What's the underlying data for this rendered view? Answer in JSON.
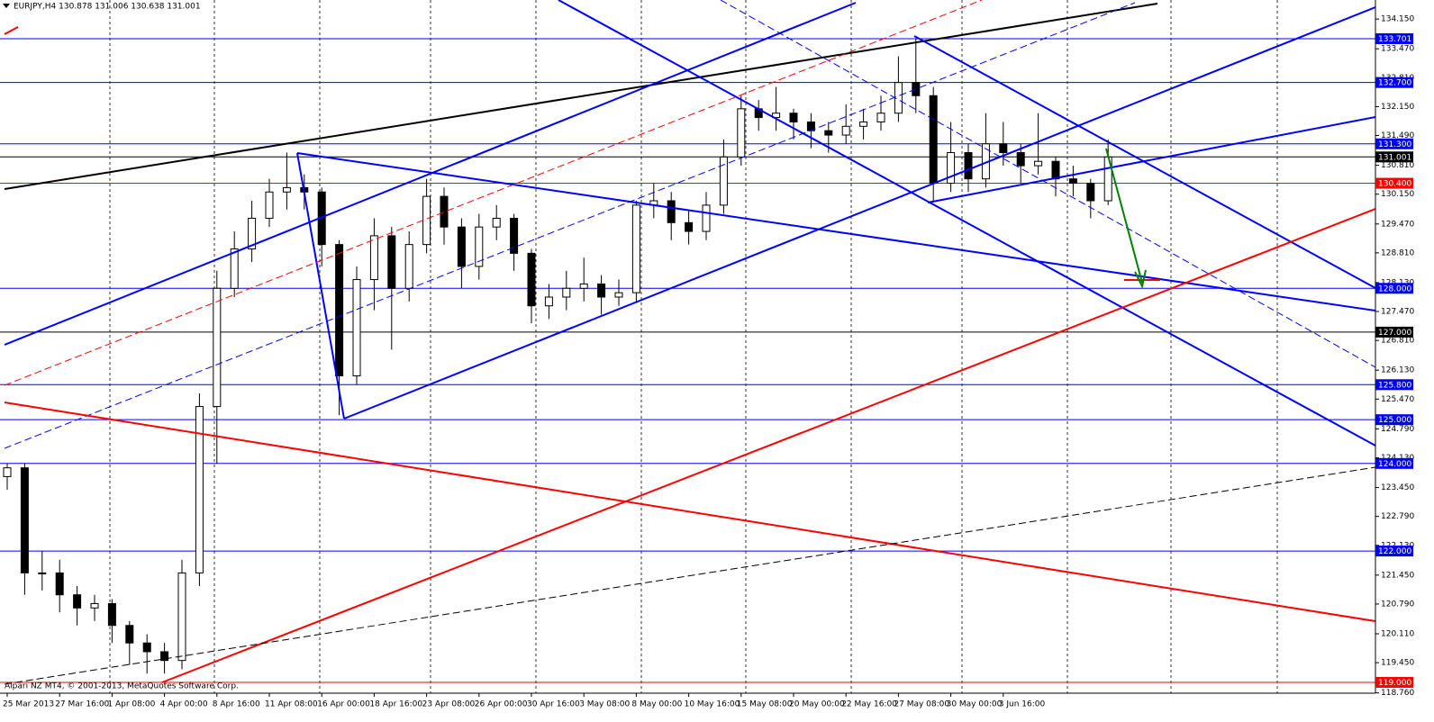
{
  "chart_data": {
    "type": "candlestick",
    "title": "EURJPY,H4  130.878 131.006 130.638 131.001",
    "annotation": "Alpari NZ MT4, © 2001-2013, MetaQuotes Software Corp.",
    "categories": [
      "25 Mar 2013",
      null,
      null,
      "27 Mar 16:00",
      null,
      null,
      "1 Apr 08:00",
      null,
      null,
      "4 Apr 00:00",
      null,
      null,
      "8 Apr 16:00",
      null,
      null,
      "11 Apr 08:00",
      null,
      null,
      "16 Apr 00:00",
      null,
      null,
      "18 Apr 16:00",
      null,
      null,
      "23 Apr 08:00",
      null,
      null,
      "26 Apr 00:00",
      null,
      null,
      "30 Apr 16:00",
      null,
      null,
      "3 May 08:00",
      null,
      null,
      "8 May 00:00",
      null,
      null,
      "10 May 16:00",
      null,
      null,
      "15 May 08:00",
      null,
      null,
      "20 May 00:00",
      null,
      null,
      "22 May 16:00",
      null,
      null,
      "27 May 08:00",
      null,
      null,
      "30 May 00:00",
      null,
      null,
      "3 Jun 16:00",
      null,
      null,
      null,
      null,
      null,
      null
    ],
    "open": [
      123.7,
      123.9,
      121.5,
      121.5,
      121.0,
      120.7,
      120.8,
      120.3,
      119.9,
      119.7,
      119.5,
      121.5,
      125.3,
      128.0,
      128.9,
      129.6,
      130.2,
      130.3,
      130.2,
      129.0,
      126.0,
      128.2,
      129.2,
      128.0,
      129.0,
      130.1,
      129.4,
      128.5,
      129.4,
      129.6,
      128.8,
      127.6,
      127.8,
      128.0,
      128.1,
      127.8,
      127.9,
      129.9,
      130.0,
      129.5,
      129.3,
      129.9,
      131.0,
      132.1,
      131.9,
      132.0,
      131.8,
      131.6,
      131.5,
      131.7,
      131.8,
      132.0,
      132.7,
      132.4,
      130.4,
      131.1,
      130.5,
      131.3,
      131.1,
      130.8,
      130.9,
      130.5,
      130.4,
      130.0
    ],
    "high": [
      124.0,
      124.0,
      122.0,
      121.8,
      121.2,
      121.0,
      120.9,
      120.4,
      120.1,
      119.9,
      121.8,
      125.6,
      128.4,
      129.3,
      130.0,
      130.5,
      131.1,
      130.6,
      130.3,
      129.1,
      128.5,
      129.6,
      129.4,
      129.3,
      130.5,
      130.3,
      129.6,
      129.7,
      129.9,
      129.7,
      128.9,
      128.1,
      128.4,
      128.7,
      128.3,
      128.2,
      130.0,
      130.4,
      130.2,
      129.8,
      130.2,
      131.4,
      132.4,
      132.3,
      132.6,
      132.1,
      132.0,
      131.8,
      132.2,
      132.1,
      132.4,
      133.3,
      133.7,
      132.6,
      131.8,
      131.3,
      132.0,
      131.8,
      131.3,
      132.0,
      131.0,
      130.8,
      130.5,
      131.4
    ],
    "low": [
      123.4,
      121.0,
      121.1,
      120.6,
      120.3,
      120.4,
      119.9,
      119.4,
      119.2,
      119.2,
      119.3,
      121.2,
      124.0,
      127.8,
      128.6,
      129.4,
      129.8,
      129.8,
      128.5,
      125.1,
      125.8,
      127.5,
      126.6,
      127.7,
      128.8,
      129.0,
      128.0,
      128.2,
      129.1,
      128.4,
      127.2,
      127.3,
      127.5,
      127.7,
      127.4,
      127.6,
      127.7,
      129.6,
      129.1,
      129.0,
      129.1,
      129.7,
      130.8,
      131.6,
      131.6,
      131.4,
      131.2,
      131.1,
      131.3,
      131.4,
      131.6,
      131.8,
      132.0,
      130.0,
      130.2,
      130.2,
      130.3,
      130.8,
      130.4,
      130.6,
      130.1,
      130.1,
      129.6,
      129.9
    ],
    "close": [
      123.9,
      121.5,
      121.5,
      121.0,
      120.7,
      120.8,
      120.3,
      119.9,
      119.7,
      119.5,
      121.5,
      125.3,
      128.0,
      128.9,
      129.6,
      130.2,
      130.3,
      130.2,
      129.0,
      126.0,
      128.2,
      129.2,
      128.0,
      129.0,
      130.1,
      129.4,
      128.5,
      129.4,
      129.6,
      128.8,
      127.6,
      127.8,
      128.0,
      128.1,
      127.8,
      127.9,
      129.9,
      130.0,
      129.5,
      129.3,
      129.9,
      131.0,
      132.1,
      131.9,
      132.0,
      131.8,
      131.6,
      131.5,
      131.7,
      131.8,
      132.0,
      132.7,
      132.4,
      130.4,
      131.1,
      130.5,
      131.3,
      131.1,
      130.8,
      130.9,
      130.5,
      130.4,
      130.0,
      131.0
    ],
    "ylim": [
      118.753,
      134.585
    ],
    "yticks": [
      {
        "value": 134.15,
        "label": "134.150"
      },
      {
        "value": 133.47,
        "label": "133.470"
      },
      {
        "value": 132.81,
        "label": "132.810"
      },
      {
        "value": 132.15,
        "label": "132.150"
      },
      {
        "value": 131.49,
        "label": "131.490"
      },
      {
        "value": 130.81,
        "label": "130.810"
      },
      {
        "value": 130.15,
        "label": "130.150"
      },
      {
        "value": 129.47,
        "label": "129.470"
      },
      {
        "value": 128.81,
        "label": "128.810"
      },
      {
        "value": 128.13,
        "label": "128.130"
      },
      {
        "value": 127.47,
        "label": "127.470"
      },
      {
        "value": 126.81,
        "label": "126.810"
      },
      {
        "value": 126.13,
        "label": "126.130"
      },
      {
        "value": 125.47,
        "label": "125.470"
      },
      {
        "value": 124.79,
        "label": "124.790"
      },
      {
        "value": 124.13,
        "label": "124.130"
      },
      {
        "value": 123.45,
        "label": "123.450"
      },
      {
        "value": 122.79,
        "label": "122.790"
      },
      {
        "value": 122.13,
        "label": "122.130"
      },
      {
        "value": 121.45,
        "label": "121.450"
      },
      {
        "value": 120.79,
        "label": "120.790"
      },
      {
        "value": 120.11,
        "label": "120.110"
      },
      {
        "value": 119.45,
        "label": "119.450"
      },
      {
        "value": 118.76,
        "label": "118.760"
      }
    ],
    "levels": [
      {
        "value": 133.701,
        "color": "#0000ff"
      },
      {
        "value": 132.7,
        "label": "132.700",
        "color": "#0000ff"
      },
      {
        "value": 131.3,
        "label": "131.300",
        "color": "#0000ff"
      },
      {
        "value": 131.001,
        "color": "#000000"
      },
      {
        "value": 130.4,
        "label": "130.400",
        "color": "#ff0000"
      },
      {
        "value": 128.0,
        "label": "128.000",
        "color": "#0000ff"
      },
      {
        "value": 127.0,
        "label": "127.000",
        "color": "#000000"
      },
      {
        "value": 125.8,
        "label": "125.800",
        "color": "#0000ff"
      },
      {
        "value": 125.0,
        "label": "125.000",
        "color": "#0000ff"
      },
      {
        "value": 124.0,
        "label": "124.000",
        "color": "#0000ff"
      },
      {
        "value": 122.0,
        "label": "122.000",
        "color": "#0000ff"
      },
      {
        "value": 119.0,
        "label": "119.000",
        "color": "#ff0000"
      }
    ]
  }
}
